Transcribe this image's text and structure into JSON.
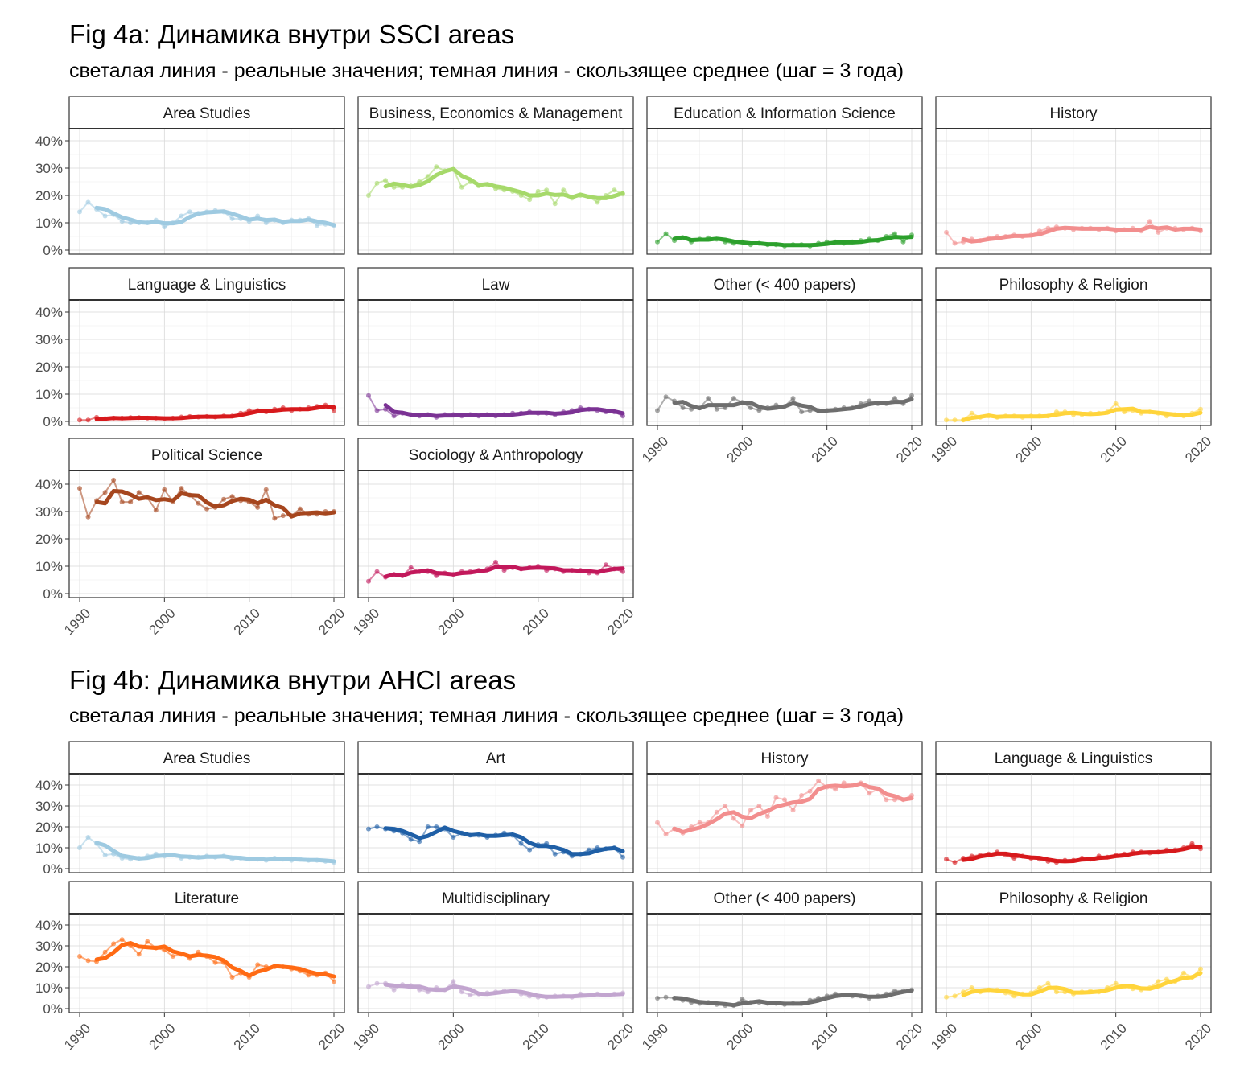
{
  "figures": [
    {
      "title": "Fig 4a: Динамика внутри SSCI areas",
      "subtitle": "светалая линия - реальные значения; темная линия - скользящее среднее (шаг = 3 года)"
    },
    {
      "title": "Fig 4b: Динамика внутри AHCI areas",
      "subtitle": "светалая линия - реальные значения; темная линия - скользящее среднее (шаг = 3 года)"
    }
  ],
  "chart_data": [
    {
      "type": "line",
      "title": "Fig 4a: Динамика внутри SSCI areas",
      "subtitle": "светалая линия - реальные значения; темная линия - скользящее среднее (шаг = 3 года)",
      "xlim": [
        1990,
        2020
      ],
      "ylim": [
        0,
        0.4
      ],
      "x_ticks": [
        "1990",
        "2000",
        "2010",
        "2020"
      ],
      "y_ticks": [
        "0%",
        "10%",
        "20%",
        "30%",
        "40%"
      ],
      "grid": true,
      "facets": [
        {
          "name": "Area Studies",
          "color": "#9ecae1",
          "y_start": 0.14,
          "values": [
            0.14,
            0.175,
            0.15,
            0.125,
            0.13,
            0.105,
            0.1,
            0.1,
            0.1,
            0.11,
            0.085,
            0.1,
            0.125,
            0.14,
            0.135,
            0.14,
            0.145,
            0.14,
            0.115,
            0.115,
            0.105,
            0.125,
            0.1,
            0.11,
            0.1,
            0.11,
            0.11,
            0.115,
            0.09,
            0.095,
            0.09
          ]
        },
        {
          "name": "Business, Economics & Management",
          "color": "#a6d96a",
          "y_start": 0.2,
          "values": [
            0.2,
            0.245,
            0.255,
            0.23,
            0.23,
            0.235,
            0.25,
            0.27,
            0.305,
            0.29,
            0.295,
            0.23,
            0.25,
            0.235,
            0.24,
            0.225,
            0.22,
            0.215,
            0.2,
            0.185,
            0.215,
            0.22,
            0.17,
            0.22,
            0.19,
            0.2,
            0.195,
            0.175,
            0.2,
            0.22,
            0.205
          ]
        },
        {
          "name": "Education & Information Science",
          "color": "#2ca02c",
          "y_start": 0.03,
          "values": [
            0.03,
            0.06,
            0.035,
            0.045,
            0.03,
            0.04,
            0.045,
            0.04,
            0.03,
            0.025,
            0.03,
            0.02,
            0.025,
            0.02,
            0.02,
            0.015,
            0.02,
            0.02,
            0.015,
            0.025,
            0.03,
            0.03,
            0.025,
            0.03,
            0.035,
            0.04,
            0.035,
            0.05,
            0.06,
            0.03,
            0.055
          ]
        },
        {
          "name": "History",
          "color": "#f28e8e",
          "y_start": 0.065,
          "values": [
            0.065,
            0.025,
            0.03,
            0.04,
            0.035,
            0.045,
            0.05,
            0.05,
            0.055,
            0.05,
            0.055,
            0.07,
            0.08,
            0.085,
            0.08,
            0.075,
            0.08,
            0.08,
            0.075,
            0.08,
            0.07,
            0.075,
            0.08,
            0.07,
            0.105,
            0.065,
            0.08,
            0.08,
            0.075,
            0.08,
            0.07
          ]
        },
        {
          "name": "Language & Linguistics",
          "color": "#d7191c",
          "y_start": 0.005,
          "values": [
            0.005,
            0.005,
            0.015,
            0.01,
            0.012,
            0.012,
            0.014,
            0.014,
            0.012,
            0.012,
            0.01,
            0.012,
            0.016,
            0.018,
            0.016,
            0.018,
            0.016,
            0.02,
            0.02,
            0.03,
            0.04,
            0.04,
            0.035,
            0.045,
            0.05,
            0.04,
            0.045,
            0.05,
            0.055,
            0.06,
            0.04
          ]
        },
        {
          "name": "Law",
          "color": "#7b3294",
          "y_start": 0.095,
          "values": [
            0.095,
            0.04,
            0.045,
            0.02,
            0.03,
            0.025,
            0.02,
            0.025,
            0.015,
            0.025,
            0.025,
            0.02,
            0.025,
            0.02,
            0.025,
            0.02,
            0.025,
            0.03,
            0.03,
            0.035,
            0.03,
            0.03,
            0.025,
            0.035,
            0.04,
            0.05,
            0.045,
            0.04,
            0.035,
            0.035,
            0.02
          ]
        },
        {
          "name": "Other (< 400 papers)",
          "color": "#6e6e6e",
          "y_start": 0.04,
          "values": [
            0.04,
            0.09,
            0.075,
            0.05,
            0.045,
            0.05,
            0.085,
            0.045,
            0.05,
            0.085,
            0.07,
            0.05,
            0.04,
            0.05,
            0.06,
            0.055,
            0.085,
            0.035,
            0.04,
            0.04,
            0.04,
            0.045,
            0.05,
            0.05,
            0.065,
            0.075,
            0.065,
            0.065,
            0.085,
            0.065,
            0.095
          ]
        },
        {
          "name": "Philosophy & Religion",
          "color": "#ffd43b",
          "y_start": 0.005,
          "values": [
            0.005,
            0.005,
            0.005,
            0.03,
            0.015,
            0.02,
            0.015,
            0.02,
            0.02,
            0.015,
            0.02,
            0.02,
            0.02,
            0.035,
            0.035,
            0.025,
            0.025,
            0.03,
            0.03,
            0.035,
            0.065,
            0.035,
            0.04,
            0.03,
            0.035,
            0.03,
            0.02,
            0.025,
            0.02,
            0.03,
            0.045
          ]
        },
        {
          "name": "Political Science",
          "color": "#a6461e",
          "y_start": 0.385,
          "values": [
            0.385,
            0.28,
            0.34,
            0.37,
            0.415,
            0.335,
            0.335,
            0.37,
            0.35,
            0.305,
            0.38,
            0.335,
            0.385,
            0.36,
            0.33,
            0.31,
            0.315,
            0.345,
            0.355,
            0.34,
            0.335,
            0.315,
            0.38,
            0.275,
            0.285,
            0.285,
            0.31,
            0.29,
            0.29,
            0.3,
            0.3
          ]
        },
        {
          "name": "Sociology & Anthropology",
          "color": "#c2185b",
          "y_start": 0.045,
          "values": [
            0.045,
            0.08,
            0.06,
            0.07,
            0.065,
            0.095,
            0.08,
            0.08,
            0.065,
            0.075,
            0.07,
            0.08,
            0.08,
            0.085,
            0.09,
            0.115,
            0.085,
            0.095,
            0.09,
            0.095,
            0.1,
            0.085,
            0.09,
            0.08,
            0.085,
            0.085,
            0.075,
            0.075,
            0.105,
            0.09,
            0.08
          ]
        }
      ]
    },
    {
      "type": "line",
      "title": "Fig 4b: Динамика внутри AHCI areas",
      "subtitle": "светалая линия - реальные значения; темная линия - скользящее среднее (шаг = 3 года)",
      "xlim": [
        1990,
        2020
      ],
      "ylim": [
        0,
        0.4
      ],
      "x_ticks": [
        "1990",
        "2000",
        "2010",
        "2020"
      ],
      "y_ticks": [
        "0%",
        "10%",
        "20%",
        "30%",
        "40%"
      ],
      "grid": true,
      "facets": [
        {
          "name": "Area Studies",
          "color": "#9ecae1",
          "y_start": 0.1,
          "values": [
            0.1,
            0.15,
            0.12,
            0.065,
            0.07,
            0.05,
            0.045,
            0.05,
            0.06,
            0.07,
            0.06,
            0.065,
            0.05,
            0.055,
            0.055,
            0.06,
            0.055,
            0.06,
            0.045,
            0.05,
            0.045,
            0.045,
            0.04,
            0.05,
            0.045,
            0.04,
            0.045,
            0.04,
            0.04,
            0.035,
            0.03
          ]
        },
        {
          "name": "Art",
          "color": "#1f5fa6",
          "y_start": 0.19,
          "values": [
            0.19,
            0.2,
            0.19,
            0.18,
            0.17,
            0.14,
            0.13,
            0.2,
            0.2,
            0.19,
            0.15,
            0.17,
            0.16,
            0.16,
            0.15,
            0.16,
            0.17,
            0.16,
            0.12,
            0.09,
            0.115,
            0.12,
            0.07,
            0.08,
            0.06,
            0.07,
            0.09,
            0.1,
            0.095,
            0.1,
            0.055
          ]
        },
        {
          "name": "History",
          "color": "#f28e8e",
          "y_start": 0.22,
          "values": [
            0.22,
            0.165,
            0.19,
            0.17,
            0.2,
            0.22,
            0.22,
            0.27,
            0.3,
            0.24,
            0.205,
            0.28,
            0.3,
            0.25,
            0.34,
            0.33,
            0.28,
            0.35,
            0.37,
            0.42,
            0.39,
            0.38,
            0.41,
            0.4,
            0.41,
            0.36,
            0.38,
            0.33,
            0.33,
            0.33,
            0.35
          ]
        },
        {
          "name": "Language & Linguistics",
          "color": "#d7191c",
          "y_start": 0.045,
          "values": [
            0.045,
            0.03,
            0.05,
            0.06,
            0.065,
            0.07,
            0.08,
            0.065,
            0.05,
            0.06,
            0.05,
            0.045,
            0.035,
            0.03,
            0.04,
            0.04,
            0.05,
            0.045,
            0.06,
            0.055,
            0.065,
            0.07,
            0.08,
            0.08,
            0.075,
            0.08,
            0.09,
            0.09,
            0.1,
            0.12,
            0.095
          ]
        },
        {
          "name": "Literature",
          "color": "#ff6a13",
          "y_start": 0.25,
          "values": [
            0.25,
            0.23,
            0.225,
            0.27,
            0.31,
            0.33,
            0.3,
            0.26,
            0.32,
            0.29,
            0.28,
            0.25,
            0.26,
            0.24,
            0.27,
            0.25,
            0.22,
            0.22,
            0.15,
            0.17,
            0.15,
            0.21,
            0.2,
            0.2,
            0.2,
            0.19,
            0.18,
            0.16,
            0.16,
            0.17,
            0.13
          ]
        },
        {
          "name": "Multidisciplinary",
          "color": "#c2a5cf",
          "y_start": 0.105,
          "values": [
            0.105,
            0.12,
            0.12,
            0.09,
            0.115,
            0.11,
            0.09,
            0.08,
            0.1,
            0.09,
            0.13,
            0.08,
            0.065,
            0.07,
            0.075,
            0.08,
            0.085,
            0.085,
            0.07,
            0.06,
            0.055,
            0.055,
            0.06,
            0.06,
            0.055,
            0.07,
            0.065,
            0.07,
            0.065,
            0.07,
            0.075
          ]
        },
        {
          "name": "Other (< 400 papers)",
          "color": "#6e6e6e",
          "y_start": 0.05,
          "values": [
            0.05,
            0.055,
            0.05,
            0.04,
            0.03,
            0.025,
            0.03,
            0.02,
            0.015,
            0.015,
            0.045,
            0.03,
            0.03,
            0.025,
            0.025,
            0.02,
            0.025,
            0.025,
            0.04,
            0.05,
            0.06,
            0.07,
            0.065,
            0.06,
            0.06,
            0.05,
            0.06,
            0.07,
            0.085,
            0.085,
            0.09
          ]
        },
        {
          "name": "Philosophy & Religion",
          "color": "#ffd43b",
          "y_start": 0.055,
          "values": [
            0.055,
            0.06,
            0.08,
            0.1,
            0.08,
            0.09,
            0.09,
            0.075,
            0.06,
            0.07,
            0.075,
            0.1,
            0.12,
            0.08,
            0.08,
            0.07,
            0.08,
            0.085,
            0.08,
            0.1,
            0.12,
            0.105,
            0.095,
            0.09,
            0.1,
            0.13,
            0.14,
            0.13,
            0.17,
            0.15,
            0.19
          ]
        }
      ]
    }
  ]
}
